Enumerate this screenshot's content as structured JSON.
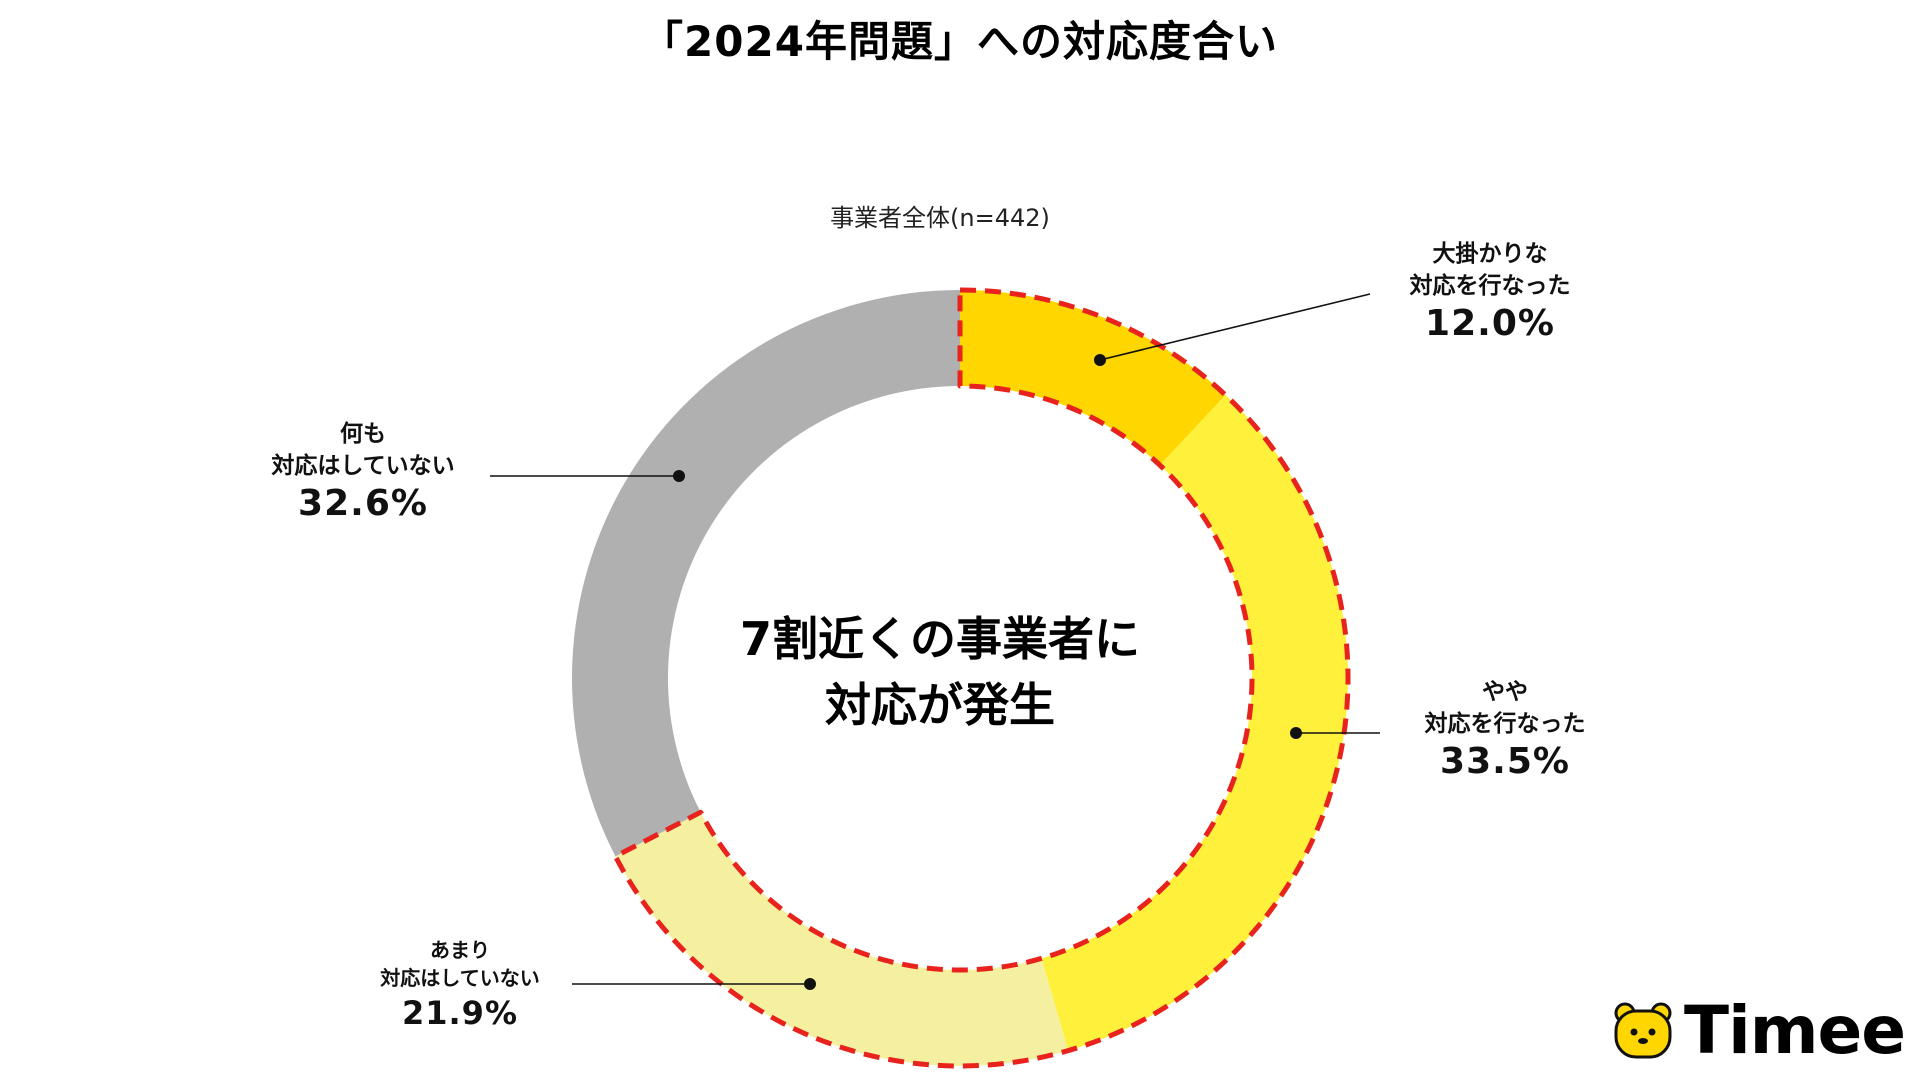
{
  "chart_data": {
    "type": "pie",
    "variant": "donut",
    "title": "「2024年問題」への対応度合い",
    "subtitle": "事業者全体(n=442)",
    "center_text": [
      "7割近くの事業者に",
      "対応が発生"
    ],
    "slices": [
      {
        "label": "大掛かりな\n対応を行なった",
        "value": 12.0,
        "display": "12.0%",
        "color": "#FFD600"
      },
      {
        "label": "やや\n対応を行なった",
        "value": 33.5,
        "display": "33.5%",
        "color": "#FFF03C"
      },
      {
        "label": "あまり\n対応はしていない",
        "value": 21.9,
        "display": "21.9%",
        "color": "#F5F0A0"
      },
      {
        "label": "何も\n対応はしていない",
        "value": 32.6,
        "display": "32.6%",
        "color": "#B0B0B0"
      }
    ],
    "highlight": {
      "slices": [
        0,
        1,
        2
      ],
      "style": "dashed",
      "color": "#E8231E"
    },
    "legend": "none"
  },
  "brand": {
    "name": "Timee",
    "icon": "bear-face-icon",
    "color": "#FFD600"
  }
}
